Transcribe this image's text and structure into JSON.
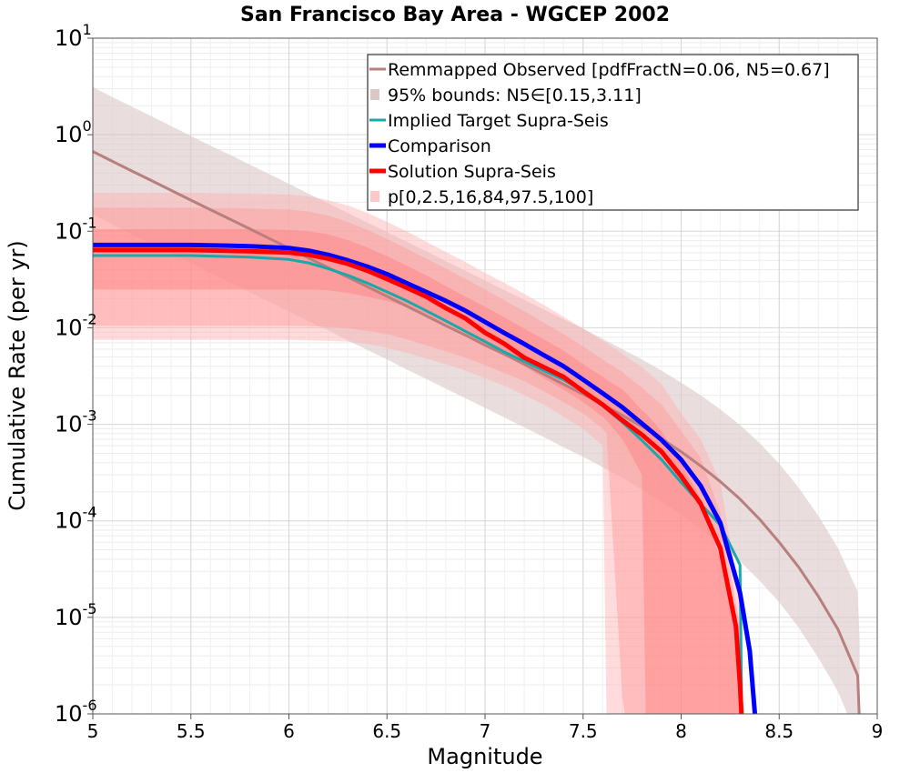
{
  "chart_data": {
    "type": "line",
    "title": "San Francisco Bay Area - WGCEP 2002",
    "xlabel": "Magnitude",
    "ylabel": "Cumulative Rate (per yr)",
    "xlim": [
      5,
      9
    ],
    "ylim": [
      1e-06,
      10
    ],
    "yscale": "log",
    "grid": true,
    "legend_position": "top-right",
    "x_ticks": [
      "5",
      "5.5",
      "6",
      "6.5",
      "7",
      "7.5",
      "8",
      "8.5",
      "9"
    ],
    "y_ticks": [
      {
        "base": "10",
        "exp": "-6"
      },
      {
        "base": "10",
        "exp": "-5"
      },
      {
        "base": "10",
        "exp": "-4"
      },
      {
        "base": "10",
        "exp": "-3"
      },
      {
        "base": "10",
        "exp": "-2"
      },
      {
        "base": "10",
        "exp": "-1"
      },
      {
        "base": "10",
        "exp": "0"
      },
      {
        "base": "10",
        "exp": "1"
      }
    ],
    "series": [
      {
        "name": "Remmapped Observed [pdfFractN=0.06, N5=0.67]",
        "kind": "line",
        "color": "#b87f7f",
        "width": 3,
        "x": [
          5.0,
          5.1,
          5.2,
          5.3,
          5.4,
          5.5,
          5.6,
          5.7,
          5.8,
          5.9,
          6.0,
          6.1,
          6.2,
          6.3,
          6.4,
          6.5,
          6.6,
          6.7,
          6.8,
          6.9,
          7.0,
          7.1,
          7.2,
          7.3,
          7.4,
          7.5,
          7.6,
          7.7,
          7.8,
          7.9,
          8.0,
          8.1,
          8.2,
          8.3,
          8.4,
          8.5,
          8.6,
          8.7,
          8.8,
          8.9,
          8.91
        ],
        "y": [
          0.67,
          0.53,
          0.42,
          0.335,
          0.265,
          0.21,
          0.167,
          0.133,
          0.106,
          0.084,
          0.067,
          0.053,
          0.042,
          0.0335,
          0.0266,
          0.0212,
          0.0168,
          0.0133,
          0.0105,
          0.0084,
          0.0066,
          0.0053,
          0.0042,
          0.0033,
          0.0026,
          0.00205,
          0.0016,
          0.00124,
          0.00095,
          0.00071,
          0.00052,
          0.00037,
          0.000255,
          0.000168,
          0.000104,
          6e-05,
          3.3e-05,
          1.65e-05,
          7.5e-06,
          2.5e-06,
          8e-07
        ]
      },
      {
        "name": "95% bounds: N5∈[0.15,3.11]",
        "kind": "band",
        "color": "#ddc8c8",
        "opacity": 0.62,
        "x": [
          5.0,
          5.1,
          5.2,
          5.3,
          5.4,
          5.5,
          5.6,
          5.7,
          5.8,
          5.9,
          6.0,
          6.1,
          6.2,
          6.3,
          6.4,
          6.5,
          6.6,
          6.7,
          6.8,
          6.9,
          7.0,
          7.1,
          7.2,
          7.3,
          7.4,
          7.5,
          7.6,
          7.7,
          7.8,
          7.9,
          8.0,
          8.1,
          8.2,
          8.3,
          8.4,
          8.5,
          8.6,
          8.7,
          8.8,
          8.9,
          8.91
        ],
        "lower": [
          0.15,
          0.117,
          0.093,
          0.074,
          0.059,
          0.047,
          0.037,
          0.0294,
          0.0234,
          0.0186,
          0.0148,
          0.0117,
          0.0094,
          0.0074,
          0.0059,
          0.0047,
          0.0037,
          0.00295,
          0.00234,
          0.00186,
          0.00148,
          0.00117,
          0.00093,
          0.00074,
          0.00058,
          0.00046,
          0.00036,
          0.00028,
          0.00021,
          0.000157,
          0.000116,
          8.3e-05,
          5.7e-05,
          3.8e-05,
          2.4e-05,
          1.43e-05,
          7.8e-06,
          3.8e-06,
          1.7e-06,
          5.5e-07,
          2e-07
        ],
        "upper": [
          3.11,
          2.45,
          1.95,
          1.55,
          1.23,
          0.97,
          0.77,
          0.62,
          0.49,
          0.39,
          0.31,
          0.245,
          0.195,
          0.155,
          0.123,
          0.098,
          0.078,
          0.062,
          0.049,
          0.039,
          0.031,
          0.0245,
          0.0195,
          0.0155,
          0.0123,
          0.0098,
          0.0077,
          0.006,
          0.0047,
          0.0036,
          0.0027,
          0.002,
          0.00143,
          0.00098,
          0.00064,
          0.00039,
          0.00022,
          0.000113,
          5.2e-05,
          1.85e-05,
          6e-06
        ]
      },
      {
        "name": "Implied Target Supra-Seis",
        "kind": "line",
        "color": "#1aa8a8",
        "width": 3,
        "x": [
          5.0,
          5.5,
          5.8,
          6.0,
          6.1,
          6.2,
          6.3,
          6.4,
          6.5,
          6.6,
          6.7,
          6.8,
          6.9,
          7.0,
          7.1,
          7.2,
          7.3,
          7.4,
          7.5,
          7.6,
          7.7,
          7.8,
          7.9,
          8.0,
          8.1,
          8.2,
          8.3,
          8.31
        ],
        "y": [
          0.056,
          0.056,
          0.054,
          0.051,
          0.047,
          0.041,
          0.035,
          0.029,
          0.0235,
          0.019,
          0.015,
          0.0118,
          0.0092,
          0.0072,
          0.0056,
          0.0045,
          0.0036,
          0.0029,
          0.0022,
          0.00155,
          0.00105,
          0.00068,
          0.00043,
          0.00025,
          0.00015,
          9e-05,
          3.5e-05,
          8e-07
        ]
      },
      {
        "name": "Comparison",
        "kind": "line",
        "color": "#0000ff",
        "width": 5,
        "x": [
          5.0,
          5.5,
          5.8,
          6.0,
          6.1,
          6.2,
          6.3,
          6.4,
          6.5,
          6.6,
          6.7,
          6.8,
          6.9,
          7.0,
          7.1,
          7.2,
          7.3,
          7.4,
          7.5,
          7.6,
          7.7,
          7.8,
          7.9,
          8.0,
          8.1,
          8.2,
          8.3,
          8.35,
          8.38
        ],
        "y": [
          0.072,
          0.072,
          0.07,
          0.067,
          0.063,
          0.057,
          0.05,
          0.043,
          0.036,
          0.029,
          0.0235,
          0.019,
          0.015,
          0.0115,
          0.0088,
          0.0068,
          0.0052,
          0.004,
          0.0029,
          0.0021,
          0.0015,
          0.00102,
          0.00069,
          0.00043,
          0.00023,
          9.5e-05,
          1.8e-05,
          4.5e-06,
          8e-07
        ]
      },
      {
        "name": "Solution Supra-Seis",
        "kind": "line",
        "color": "#ff0000",
        "width": 5,
        "x": [
          5.0,
          5.5,
          5.8,
          6.0,
          6.1,
          6.2,
          6.3,
          6.4,
          6.5,
          6.6,
          6.7,
          6.8,
          6.9,
          7.0,
          7.1,
          7.2,
          7.3,
          7.4,
          7.5,
          7.6,
          7.7,
          7.8,
          7.9,
          8.0,
          8.1,
          8.2,
          8.28,
          8.3,
          8.31
        ],
        "y": [
          0.064,
          0.064,
          0.062,
          0.06,
          0.057,
          0.052,
          0.046,
          0.039,
          0.032,
          0.026,
          0.021,
          0.016,
          0.0125,
          0.0089,
          0.0068,
          0.0049,
          0.0039,
          0.0031,
          0.0022,
          0.0016,
          0.0011,
          0.00078,
          0.00052,
          0.00029,
          0.00015,
          5.2e-05,
          8e-06,
          2e-06,
          8e-07
        ]
      },
      {
        "name": "p[0,2.5,16,84,97.5,100]",
        "kind": "percentile-bands",
        "color": "#ff8080",
        "x": [
          5.0,
          5.5,
          5.8,
          6.0,
          6.1,
          6.2,
          6.3,
          6.4,
          6.5,
          6.6,
          6.7,
          6.8,
          6.9,
          7.0,
          7.1,
          7.2,
          7.3,
          7.4,
          7.5,
          7.6,
          7.62,
          7.7,
          7.72,
          7.8,
          7.82,
          7.9,
          8.0,
          8.1,
          8.2,
          8.3,
          8.31
        ],
        "p0": [
          0.0075,
          0.0075,
          0.0075,
          0.0075,
          0.0074,
          0.0073,
          0.0072,
          0.0068,
          0.0062,
          0.0055,
          0.0048,
          0.0042,
          0.0036,
          0.003,
          0.0025,
          0.002,
          0.0016,
          0.0012,
          0.0009,
          0.0006,
          8e-07,
          8e-07,
          8e-07,
          8e-07,
          8e-07,
          8e-07,
          8e-07,
          8e-07,
          8e-07,
          8e-07,
          8e-07
        ],
        "p2_5": [
          0.0105,
          0.0105,
          0.0105,
          0.0105,
          0.0104,
          0.0102,
          0.0099,
          0.0093,
          0.0086,
          0.0076,
          0.0066,
          0.0057,
          0.0049,
          0.0041,
          0.0034,
          0.0028,
          0.0022,
          0.0017,
          0.0013,
          0.0009,
          0.0008,
          1.5e-06,
          8e-07,
          8e-07,
          8e-07,
          8e-07,
          8e-07,
          8e-07,
          8e-07,
          8e-07,
          8e-07
        ],
        "p16": [
          0.025,
          0.025,
          0.025,
          0.025,
          0.025,
          0.0245,
          0.023,
          0.021,
          0.019,
          0.0165,
          0.0135,
          0.011,
          0.0087,
          0.0068,
          0.0052,
          0.004,
          0.003,
          0.0023,
          0.0017,
          0.0012,
          0.0011,
          0.0007,
          0.0006,
          0.0003,
          8e-07,
          8e-07,
          8e-07,
          8e-07,
          8e-07,
          8e-07,
          8e-07
        ],
        "p84": [
          0.105,
          0.105,
          0.105,
          0.103,
          0.1,
          0.093,
          0.081,
          0.068,
          0.055,
          0.044,
          0.035,
          0.027,
          0.021,
          0.0165,
          0.0128,
          0.0098,
          0.0076,
          0.0058,
          0.0042,
          0.0031,
          0.0029,
          0.0023,
          0.0021,
          0.0014,
          0.0013,
          0.00085,
          0.0004,
          0.00017,
          4e-05,
          4e-06,
          8e-07
        ],
        "p97_5": [
          0.175,
          0.175,
          0.172,
          0.168,
          0.16,
          0.145,
          0.125,
          0.103,
          0.083,
          0.066,
          0.052,
          0.041,
          0.032,
          0.025,
          0.0192,
          0.0148,
          0.0113,
          0.0086,
          0.0064,
          0.0047,
          0.0044,
          0.0035,
          0.0032,
          0.0024,
          0.0022,
          0.0016,
          0.00085,
          0.00045,
          0.00012,
          8e-06,
          8e-07
        ],
        "p100": [
          0.25,
          0.25,
          0.245,
          0.24,
          0.23,
          0.21,
          0.185,
          0.155,
          0.125,
          0.1,
          0.078,
          0.061,
          0.048,
          0.037,
          0.029,
          0.0225,
          0.0172,
          0.013,
          0.0098,
          0.0073,
          0.0069,
          0.0054,
          0.005,
          0.0039,
          0.0036,
          0.0026,
          0.0013,
          0.0007,
          0.00025,
          1.5e-05,
          8e-07
        ]
      }
    ]
  }
}
